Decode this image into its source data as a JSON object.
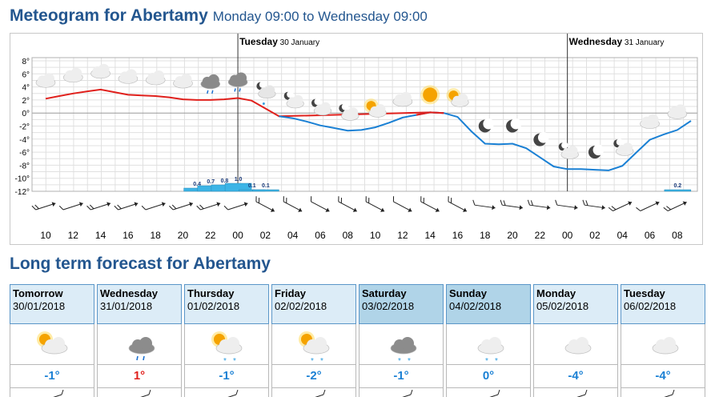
{
  "header": {
    "title": "Meteogram for Abertamy",
    "subtitle": "Monday 09:00 to Wednesday 09:00"
  },
  "meteogram": {
    "day_labels": [
      {
        "day": "Tuesday",
        "date": "30 January"
      },
      {
        "day": "Wednesday",
        "date": "31 January"
      }
    ],
    "y_ticks": [
      "8°",
      "6°",
      "4°",
      "2°",
      "0°",
      "-2°",
      "-4°",
      "-6°",
      "-8°",
      "-10°",
      "-12°"
    ],
    "x_ticks": [
      "10",
      "12",
      "14",
      "16",
      "18",
      "20",
      "22",
      "00",
      "02",
      "04",
      "06",
      "08",
      "10",
      "12",
      "14",
      "16",
      "18",
      "20",
      "22",
      "00",
      "02",
      "04",
      "06",
      "08"
    ],
    "precip_labels": [
      "0.4",
      "0.7",
      "0.8",
      "1.0",
      "0.1",
      "0.1",
      "0.2"
    ],
    "colors": {
      "warm": "#e0201c",
      "cold": "#1a80d4",
      "precip": "#3cb4e6",
      "grid": "#e0e0e0"
    }
  },
  "chart_data": {
    "type": "line",
    "x": [
      "10",
      "11",
      "12",
      "13",
      "14",
      "15",
      "16",
      "17",
      "18",
      "19",
      "20",
      "21",
      "22",
      "23",
      "00",
      "01",
      "02",
      "03",
      "04",
      "05",
      "06",
      "07",
      "08",
      "09",
      "10",
      "11",
      "12",
      "13",
      "14",
      "15",
      "16",
      "17",
      "18",
      "19",
      "20",
      "21",
      "22",
      "23",
      "00",
      "01",
      "02",
      "03",
      "04",
      "05",
      "06",
      "07",
      "08",
      "09"
    ],
    "series": [
      {
        "values": [
          2.2,
          2.6,
          3.0,
          3.3,
          3.6,
          3.2,
          2.8,
          2.7,
          2.6,
          2.4,
          2.1,
          2.0,
          2.0,
          2.1,
          2.3,
          1.9,
          0.7,
          -0.5,
          -0.8,
          -1.3,
          -1.9,
          -2.3,
          -2.7,
          -2.6,
          -2.2,
          -1.5,
          -0.7,
          -0.3,
          0.1,
          0.0,
          -0.6,
          -2.8,
          -4.7,
          -4.8,
          -4.7,
          -5.4,
          -6.8,
          -8.2,
          -8.6,
          -8.6,
          -8.7,
          -8.8,
          -8.1,
          -6.1,
          -4.1,
          -3.3,
          -2.6,
          -1.2
        ]
      },
      {
        "name": "precipitation",
        "values": [
          0,
          0,
          0,
          0,
          0,
          0,
          0,
          0,
          0,
          0,
          0,
          0.4,
          0.7,
          0.8,
          1.0,
          0.1,
          0.1,
          0,
          0,
          0,
          0,
          0,
          0,
          0,
          0,
          0,
          0,
          0,
          0,
          0,
          0,
          0,
          0,
          0,
          0,
          0,
          0,
          0,
          0,
          0,
          0,
          0,
          0,
          0,
          0,
          0,
          0.2,
          0
        ]
      }
    ],
    "ylim": [
      -12,
      9
    ]
  },
  "long_term": {
    "title": "Long term forecast for Abertamy",
    "days": [
      {
        "day": "Tomorrow",
        "date": "30/01/2018",
        "temp": "-1°",
        "icon": "partly-cloudy-icon",
        "weekend": false
      },
      {
        "day": "Wednesday",
        "date": "31/01/2018",
        "temp": "1°",
        "icon": "rain-cloud-icon",
        "weekend": false
      },
      {
        "day": "Thursday",
        "date": "01/02/2018",
        "temp": "-1°",
        "icon": "sun-cloud-snow-icon",
        "weekend": false
      },
      {
        "day": "Friday",
        "date": "02/02/2018",
        "temp": "-2°",
        "icon": "sun-cloud-snow-icon",
        "weekend": false
      },
      {
        "day": "Saturday",
        "date": "03/02/2018",
        "temp": "-1°",
        "icon": "snow-cloud-icon",
        "weekend": true
      },
      {
        "day": "Sunday",
        "date": "04/02/2018",
        "temp": "0°",
        "icon": "light-snow-cloud-icon",
        "weekend": true
      },
      {
        "day": "Monday",
        "date": "05/02/2018",
        "temp": "-4°",
        "icon": "cloud-icon",
        "weekend": false
      },
      {
        "day": "Tuesday",
        "date": "06/02/2018",
        "temp": "-4°",
        "icon": "cloud-icon",
        "weekend": false
      }
    ]
  }
}
